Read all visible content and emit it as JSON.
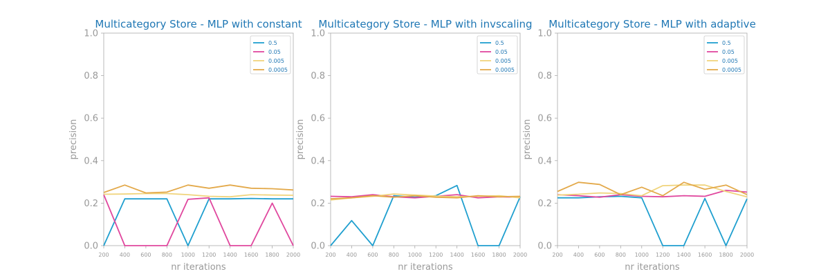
{
  "chart_data": [
    {
      "type": "line",
      "title": "Multicategory Store - MLP with constant",
      "xlabel": "nr iterations",
      "ylabel": "precision",
      "xlim": [
        200,
        2000
      ],
      "ylim": [
        0,
        1
      ],
      "x": [
        200,
        400,
        600,
        800,
        1000,
        1200,
        1400,
        1600,
        1800,
        2000
      ],
      "xticks": [
        "200",
        "400",
        "600",
        "800",
        "1000",
        "1200",
        "1400",
        "1600",
        "1800",
        "2000"
      ],
      "yticks": [
        "0.0",
        "0.2",
        "0.4",
        "0.6",
        "0.8",
        "1.0"
      ],
      "legend_position": "top-right",
      "series": [
        {
          "name": "0.5",
          "color": "#1f9fcf",
          "values": [
            0.0,
            0.22,
            0.22,
            0.22,
            0.0,
            0.22,
            0.22,
            0.222,
            0.22,
            0.22
          ]
        },
        {
          "name": "0.05",
          "color": "#e0479e",
          "values": [
            0.24,
            0.0,
            0.0,
            0.0,
            0.218,
            0.225,
            0.0,
            0.0,
            0.2,
            0.0
          ]
        },
        {
          "name": "0.005",
          "color": "#f0d47c",
          "values": [
            0.242,
            0.243,
            0.245,
            0.245,
            0.24,
            0.232,
            0.23,
            0.24,
            0.238,
            0.237
          ]
        },
        {
          "name": "0.0005",
          "color": "#e3a94a",
          "values": [
            0.25,
            0.285,
            0.248,
            0.252,
            0.285,
            0.27,
            0.285,
            0.27,
            0.268,
            0.262
          ]
        }
      ]
    },
    {
      "type": "line",
      "title": "Multicategory Store - MLP with invscaling",
      "xlabel": "nr iterations",
      "ylabel": "precision",
      "xlim": [
        200,
        2000
      ],
      "ylim": [
        0,
        1
      ],
      "x": [
        200,
        400,
        600,
        800,
        1000,
        1200,
        1400,
        1600,
        1800,
        2000
      ],
      "xticks": [
        "200",
        "400",
        "600",
        "800",
        "1000",
        "1200",
        "1400",
        "1600",
        "1800",
        "2000"
      ],
      "yticks": [
        "0.0",
        "0.2",
        "0.4",
        "0.6",
        "0.8",
        "1.0"
      ],
      "legend_position": "top-right",
      "series": [
        {
          "name": "0.5",
          "color": "#1f9fcf",
          "values": [
            0.0,
            0.118,
            0.0,
            0.235,
            0.228,
            0.235,
            0.283,
            0.0,
            0.0,
            0.23
          ]
        },
        {
          "name": "0.05",
          "color": "#e0479e",
          "values": [
            0.232,
            0.23,
            0.24,
            0.23,
            0.225,
            0.232,
            0.24,
            0.225,
            0.23,
            0.228
          ]
        },
        {
          "name": "0.005",
          "color": "#f0d47c",
          "values": [
            0.215,
            0.225,
            0.232,
            0.243,
            0.238,
            0.233,
            0.23,
            0.232,
            0.235,
            0.225
          ]
        },
        {
          "name": "0.0005",
          "color": "#e3a94a",
          "values": [
            0.22,
            0.225,
            0.235,
            0.228,
            0.235,
            0.228,
            0.225,
            0.235,
            0.23,
            0.232
          ]
        }
      ]
    },
    {
      "type": "line",
      "title": "Multicategory Store - MLP with adaptive",
      "xlabel": "nr iterations",
      "ylabel": "precision",
      "xlim": [
        200,
        2000
      ],
      "ylim": [
        0,
        1
      ],
      "x": [
        200,
        400,
        600,
        800,
        1000,
        1200,
        1400,
        1600,
        1800,
        2000
      ],
      "xticks": [
        "200",
        "400",
        "600",
        "800",
        "1000",
        "1200",
        "1400",
        "1600",
        "1800",
        "2000"
      ],
      "yticks": [
        "0.0",
        "0.2",
        "0.4",
        "0.6",
        "0.8",
        "1.0"
      ],
      "legend_position": "top-right",
      "series": [
        {
          "name": "0.5",
          "color": "#1f9fcf",
          "values": [
            0.225,
            0.225,
            0.23,
            0.232,
            0.225,
            0.0,
            0.0,
            0.222,
            0.0,
            0.22
          ]
        },
        {
          "name": "0.05",
          "color": "#e0479e",
          "values": [
            0.24,
            0.235,
            0.228,
            0.24,
            0.232,
            0.23,
            0.235,
            0.232,
            0.26,
            0.252
          ]
        },
        {
          "name": "0.005",
          "color": "#f0d47c",
          "values": [
            0.238,
            0.242,
            0.248,
            0.245,
            0.235,
            0.282,
            0.285,
            0.285,
            0.255,
            0.23
          ]
        },
        {
          "name": "0.0005",
          "color": "#e3a94a",
          "values": [
            0.255,
            0.298,
            0.288,
            0.24,
            0.275,
            0.235,
            0.298,
            0.265,
            0.285,
            0.24
          ]
        }
      ]
    }
  ]
}
